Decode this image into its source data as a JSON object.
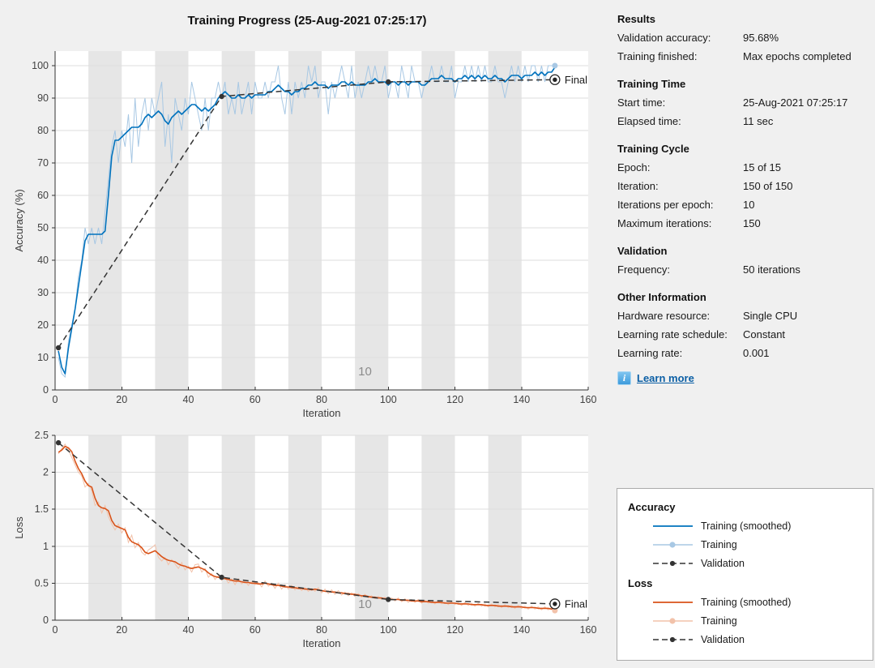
{
  "title": "Training Progress (25-Aug-2021 07:25:17)",
  "colors": {
    "figure_bg": "#F0F0F0",
    "plot_bg": "#FFFFFF",
    "epoch_band": "#E6E6E6",
    "grid": "#DDDDDD",
    "axis": "#333333",
    "accent_blue": "#0072BD",
    "light_blue": "#A8C8E4",
    "accent_orange": "#D95319",
    "light_orange": "#F2C2AA",
    "validation_dark": "#333333",
    "link_blue": "#0B5FA5"
  },
  "chart_data": [
    {
      "type": "line",
      "name": "accuracy",
      "xlabel": "Iteration",
      "ylabel": "Accuracy (%)",
      "xlim": [
        0,
        160
      ],
      "ylim": [
        0,
        100
      ],
      "ymax_display": 104.5,
      "xticks": [
        0,
        20,
        40,
        60,
        80,
        100,
        120,
        140,
        160
      ],
      "xtick_labels": [
        "0",
        "20",
        "40",
        "60",
        "80",
        "100",
        "120",
        "140",
        "160"
      ],
      "yticks": [
        0,
        10,
        20,
        30,
        40,
        50,
        60,
        70,
        80,
        90,
        100
      ],
      "ytick_labels": [
        "0",
        "10",
        "20",
        "30",
        "40",
        "50",
        "60",
        "70",
        "80",
        "90",
        "100"
      ],
      "epoch_bands": [
        [
          10,
          20
        ],
        [
          30,
          40
        ],
        [
          50,
          60
        ],
        [
          70,
          80
        ],
        [
          90,
          100
        ],
        [
          110,
          120
        ],
        [
          130,
          140
        ]
      ],
      "band_label": {
        "text": "10",
        "x": 93
      },
      "series": {
        "raw": {
          "label": "Training",
          "color": "#A8C8E4",
          "end_dot": true,
          "values": [
            10,
            5,
            4,
            15,
            20,
            25,
            35,
            40,
            50,
            45,
            50,
            45,
            50,
            45,
            55,
            65,
            75,
            80,
            70,
            80,
            75,
            85,
            70,
            90,
            75,
            85,
            90,
            80,
            90,
            85,
            90,
            95,
            75,
            85,
            70,
            90,
            85,
            80,
            90,
            85,
            95,
            90,
            85,
            80,
            90,
            80,
            90,
            90,
            95,
            90,
            95,
            85,
            90,
            85,
            95,
            85,
            90,
            95,
            85,
            95,
            90,
            90,
            95,
            90,
            95,
            95,
            100,
            90,
            85,
            95,
            85,
            95,
            90,
            95,
            90,
            100,
            95,
            100,
            90,
            95,
            95,
            85,
            95,
            90,
            95,
            100,
            95,
            90,
            100,
            90,
            95,
            90,
            95,
            100,
            95,
            100,
            95,
            95,
            100,
            90,
            95,
            95,
            90,
            100,
            95,
            90,
            100,
            95,
            95,
            90,
            95,
            95,
            100,
            95,
            95,
            100,
            95,
            95,
            100,
            90,
            95,
            95,
            100,
            95,
            100,
            95,
            100,
            95,
            100,
            95,
            95,
            100,
            95,
            95,
            90,
            95,
            100,
            95,
            100,
            95,
            100,
            95,
            100,
            100,
            95,
            100,
            95,
            100,
            100,
            100
          ]
        },
        "smoothed": {
          "label": "Training (smoothed)",
          "color": "#0072BD",
          "values": [
            12,
            7,
            5,
            13,
            19,
            25,
            32,
            39,
            46,
            48,
            48,
            48,
            48,
            48,
            49,
            60,
            72,
            77,
            77,
            78,
            79,
            80,
            81,
            81,
            81,
            82,
            84,
            85,
            84,
            85,
            86,
            85,
            83,
            82,
            84,
            85,
            86,
            85,
            86,
            87,
            88,
            88,
            87,
            86,
            87,
            86,
            87,
            88,
            90,
            91,
            92,
            91,
            90,
            90,
            91,
            90,
            90,
            91,
            90,
            91,
            91,
            91,
            91,
            92,
            92,
            93,
            94,
            93,
            92,
            92,
            91,
            92,
            92,
            93,
            93,
            94,
            94,
            95,
            94,
            94,
            94,
            93,
            94,
            94,
            94,
            95,
            95,
            94,
            95,
            94,
            94,
            94,
            94,
            95,
            95,
            96,
            95,
            95,
            95,
            94,
            95,
            95,
            94,
            95,
            95,
            94,
            95,
            95,
            95,
            94,
            94,
            95,
            96,
            96,
            96,
            97,
            96,
            96,
            96,
            95,
            96,
            96,
            97,
            96,
            97,
            96,
            97,
            96,
            97,
            96,
            96,
            97,
            96,
            96,
            95,
            96,
            97,
            97,
            97,
            96,
            97,
            97,
            97,
            98,
            97,
            98,
            97,
            98,
            98,
            99.5
          ]
        },
        "validation": {
          "label": "Validation",
          "color": "#333333",
          "x": [
            1,
            50,
            100,
            150
          ],
          "y": [
            13,
            90.5,
            95,
            95.68
          ],
          "final_label": "Final"
        }
      }
    },
    {
      "type": "line",
      "name": "loss",
      "xlabel": "Iteration",
      "ylabel": "Loss",
      "xlim": [
        0,
        160
      ],
      "ylim": [
        0,
        2.5
      ],
      "ymax_display": 2.5,
      "xticks": [
        0,
        20,
        40,
        60,
        80,
        100,
        120,
        140,
        160
      ],
      "xtick_labels": [
        "0",
        "20",
        "40",
        "60",
        "80",
        "100",
        "120",
        "140",
        "160"
      ],
      "yticks": [
        0,
        0.5,
        1,
        1.5,
        2,
        2.5
      ],
      "ytick_labels": [
        "0",
        "0.5",
        "1",
        "1.5",
        "2",
        "2.5"
      ],
      "epoch_bands": [
        [
          10,
          20
        ],
        [
          30,
          40
        ],
        [
          50,
          60
        ],
        [
          70,
          80
        ],
        [
          90,
          100
        ],
        [
          110,
          120
        ],
        [
          130,
          140
        ]
      ],
      "band_label": {
        "text": "10",
        "x": 93
      },
      "series": {
        "raw": {
          "label": "Training",
          "color": "#F2C2AA",
          "end_dot": true,
          "values": [
            2.25,
            2.32,
            2.38,
            2.3,
            2.2,
            2.1,
            2.0,
            1.95,
            1.8,
            1.85,
            1.75,
            1.55,
            1.6,
            1.45,
            1.55,
            1.4,
            1.3,
            1.22,
            1.3,
            1.18,
            1.25,
            1.05,
            1.15,
            0.98,
            1.05,
            0.92,
            0.88,
            0.95,
            0.98,
            1.02,
            0.85,
            0.8,
            0.85,
            0.75,
            0.82,
            0.76,
            0.7,
            0.78,
            0.68,
            0.73,
            0.65,
            0.75,
            0.76,
            0.65,
            0.7,
            0.58,
            0.63,
            0.55,
            0.6,
            0.54,
            0.58,
            0.5,
            0.56,
            0.48,
            0.56,
            0.49,
            0.53,
            0.47,
            0.52,
            0.48,
            0.51,
            0.45,
            0.53,
            0.46,
            0.5,
            0.43,
            0.5,
            0.42,
            0.48,
            0.42,
            0.47,
            0.41,
            0.45,
            0.4,
            0.44,
            0.39,
            0.43,
            0.39,
            0.44,
            0.37,
            0.42,
            0.36,
            0.41,
            0.35,
            0.4,
            0.34,
            0.38,
            0.33,
            0.37,
            0.32,
            0.36,
            0.31,
            0.35,
            0.3,
            0.33,
            0.29,
            0.32,
            0.28,
            0.31,
            0.27,
            0.3,
            0.26,
            0.3,
            0.25,
            0.29,
            0.24,
            0.28,
            0.24,
            0.28,
            0.23,
            0.27,
            0.23,
            0.26,
            0.22,
            0.26,
            0.22,
            0.25,
            0.21,
            0.25,
            0.21,
            0.24,
            0.2,
            0.24,
            0.2,
            0.23,
            0.19,
            0.23,
            0.19,
            0.22,
            0.18,
            0.22,
            0.18,
            0.21,
            0.17,
            0.21,
            0.17,
            0.2,
            0.16,
            0.2,
            0.16,
            0.19,
            0.15,
            0.19,
            0.15,
            0.18,
            0.14,
            0.18,
            0.14,
            0.17,
            0.13
          ]
        },
        "smoothed": {
          "label": "Training (smoothed)",
          "color": "#D95319",
          "values": [
            2.27,
            2.3,
            2.35,
            2.33,
            2.28,
            2.15,
            2.05,
            1.98,
            1.88,
            1.82,
            1.8,
            1.65,
            1.55,
            1.52,
            1.51,
            1.48,
            1.35,
            1.28,
            1.26,
            1.24,
            1.22,
            1.12,
            1.06,
            1.04,
            1.02,
            0.98,
            0.92,
            0.9,
            0.92,
            0.94,
            0.9,
            0.86,
            0.83,
            0.81,
            0.8,
            0.79,
            0.76,
            0.74,
            0.73,
            0.71,
            0.7,
            0.71,
            0.72,
            0.7,
            0.68,
            0.64,
            0.61,
            0.59,
            0.58,
            0.57,
            0.56,
            0.55,
            0.54,
            0.53,
            0.53,
            0.52,
            0.51,
            0.51,
            0.5,
            0.5,
            0.49,
            0.49,
            0.5,
            0.49,
            0.48,
            0.47,
            0.47,
            0.46,
            0.45,
            0.45,
            0.44,
            0.44,
            0.43,
            0.43,
            0.42,
            0.42,
            0.41,
            0.42,
            0.41,
            0.4,
            0.39,
            0.39,
            0.38,
            0.38,
            0.37,
            0.37,
            0.36,
            0.36,
            0.35,
            0.35,
            0.34,
            0.33,
            0.33,
            0.32,
            0.31,
            0.31,
            0.3,
            0.3,
            0.29,
            0.29,
            0.28,
            0.28,
            0.28,
            0.27,
            0.27,
            0.27,
            0.26,
            0.26,
            0.26,
            0.25,
            0.25,
            0.25,
            0.24,
            0.24,
            0.24,
            0.24,
            0.23,
            0.23,
            0.23,
            0.23,
            0.22,
            0.22,
            0.22,
            0.22,
            0.21,
            0.21,
            0.21,
            0.21,
            0.2,
            0.2,
            0.2,
            0.2,
            0.19,
            0.19,
            0.19,
            0.19,
            0.18,
            0.18,
            0.18,
            0.18,
            0.17,
            0.17,
            0.17,
            0.17,
            0.16,
            0.16,
            0.16,
            0.16,
            0.15,
            0.15
          ]
        },
        "validation": {
          "label": "Validation",
          "color": "#333333",
          "x": [
            1,
            50,
            100,
            150
          ],
          "y": [
            2.4,
            0.58,
            0.28,
            0.22
          ],
          "final_label": "Final"
        }
      }
    }
  ],
  "info_panel": {
    "sections": [
      {
        "title": "Results",
        "rows": [
          {
            "label": "Validation accuracy:",
            "value": "95.68%"
          },
          {
            "label": "Training finished:",
            "value": "Max epochs completed"
          }
        ]
      },
      {
        "title": "Training Time",
        "rows": [
          {
            "label": "Start time:",
            "value": "25-Aug-2021 07:25:17"
          },
          {
            "label": "Elapsed time:",
            "value": "11 sec"
          }
        ]
      },
      {
        "title": "Training Cycle",
        "rows": [
          {
            "label": "Epoch:",
            "value": "15 of 15"
          },
          {
            "label": "Iteration:",
            "value": "150 of 150"
          },
          {
            "label": "Iterations per epoch:",
            "value": "10"
          },
          {
            "label": "Maximum iterations:",
            "value": "150"
          }
        ]
      },
      {
        "title": "Validation",
        "rows": [
          {
            "label": "Frequency:",
            "value": "50 iterations"
          }
        ]
      },
      {
        "title": "Other Information",
        "rows": [
          {
            "label": "Hardware resource:",
            "value": "Single CPU"
          },
          {
            "label": "Learning rate schedule:",
            "value": "Constant"
          },
          {
            "label": "Learning rate:",
            "value": "0.001"
          }
        ]
      }
    ],
    "learn_more": "Learn more",
    "info_icon": "i"
  },
  "legend": {
    "groups": [
      {
        "title": "Accuracy",
        "items": [
          {
            "label": "Training (smoothed)",
            "kind": "solid",
            "color": "#0072BD"
          },
          {
            "label": "Training",
            "kind": "raw-dot",
            "color": "#A8C8E4"
          },
          {
            "label": "Validation",
            "kind": "dashed-dot",
            "color": "#333333"
          }
        ]
      },
      {
        "title": "Loss",
        "items": [
          {
            "label": "Training (smoothed)",
            "kind": "solid",
            "color": "#D95319"
          },
          {
            "label": "Training",
            "kind": "raw-dot",
            "color": "#F2C2AA"
          },
          {
            "label": "Validation",
            "kind": "dashed-dot",
            "color": "#333333"
          }
        ]
      }
    ]
  }
}
